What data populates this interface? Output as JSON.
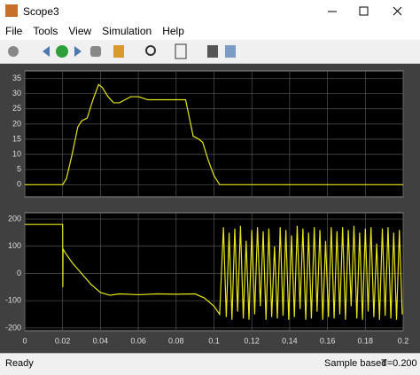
{
  "window": {
    "title": "Scope3"
  },
  "menu": [
    "File",
    "Tools",
    "View",
    "Simulation",
    "Help"
  ],
  "status": {
    "left": "Ready",
    "mode": "Sample based",
    "time": "T=0.200"
  },
  "chart_data": [
    {
      "type": "line",
      "xlim": [
        0,
        0.2
      ],
      "ylim": [
        -4,
        37.5
      ],
      "xticks": [
        0,
        0.02,
        0.04,
        0.06,
        0.08,
        0.1,
        0.12,
        0.14,
        0.16,
        0.18,
        0.2
      ],
      "yticks": [
        0,
        5,
        10,
        15,
        20,
        25,
        30,
        35
      ],
      "grid": true,
      "show_xtick_labels": false,
      "series": [
        {
          "color": "#e6e619",
          "x": [
            0,
            0.02,
            0.022,
            0.025,
            0.028,
            0.03,
            0.033,
            0.036,
            0.039,
            0.041,
            0.044,
            0.047,
            0.05,
            0.053,
            0.056,
            0.06,
            0.065,
            0.07,
            0.075,
            0.08,
            0.085,
            0.087,
            0.089,
            0.092,
            0.094,
            0.097,
            0.1,
            0.103,
            0.2
          ],
          "values": [
            0,
            0,
            2,
            10,
            19,
            21,
            22,
            28,
            33,
            32,
            29,
            27,
            27,
            28,
            29,
            29,
            28,
            28,
            28,
            28,
            28,
            22,
            16,
            15,
            14,
            8,
            3,
            0,
            0
          ]
        }
      ]
    },
    {
      "type": "line",
      "xlim": [
        0,
        0.2
      ],
      "ylim": [
        -210,
        223
      ],
      "xticks": [
        0,
        0.02,
        0.04,
        0.06,
        0.08,
        0.1,
        0.12,
        0.14,
        0.16,
        0.18,
        0.2
      ],
      "yticks": [
        -200,
        -100,
        0,
        100,
        200
      ],
      "grid": true,
      "show_xtick_labels": true,
      "series": [
        {
          "color": "#e6e619",
          "x": [
            0,
            0.02,
            0.0201,
            0.0202,
            0.021,
            0.025,
            0.03,
            0.035,
            0.04,
            0.045,
            0.05,
            0.06,
            0.07,
            0.08,
            0.09,
            0.095,
            0.1,
            0.103,
            0.105,
            0.1065,
            0.108,
            0.1095,
            0.111,
            0.1125,
            0.114,
            0.1155,
            0.117,
            0.1185,
            0.12,
            0.1215,
            0.123,
            0.1245,
            0.126,
            0.1275,
            0.129,
            0.1305,
            0.132,
            0.1335,
            0.135,
            0.1365,
            0.138,
            0.1395,
            0.141,
            0.1425,
            0.144,
            0.1455,
            0.147,
            0.1485,
            0.15,
            0.1515,
            0.153,
            0.1545,
            0.156,
            0.1575,
            0.159,
            0.1605,
            0.162,
            0.1635,
            0.165,
            0.1665,
            0.168,
            0.1695,
            0.171,
            0.1725,
            0.174,
            0.1755,
            0.177,
            0.1785,
            0.18,
            0.1815,
            0.183,
            0.1845,
            0.186,
            0.1875,
            0.189,
            0.1905,
            0.192,
            0.1935,
            0.195,
            0.1965,
            0.198,
            0.1995
          ],
          "values": [
            180,
            180,
            -50,
            90,
            80,
            40,
            0,
            -40,
            -70,
            -80,
            -75,
            -78,
            -75,
            -76,
            -75,
            -90,
            -120,
            -150,
            170,
            -160,
            150,
            -170,
            165,
            -140,
            175,
            -165,
            120,
            -170,
            160,
            -150,
            170,
            -120,
            155,
            -170,
            165,
            -160,
            100,
            -165,
            170,
            -155,
            160,
            -170,
            140,
            -160,
            175,
            -130,
            165,
            -170,
            150,
            -165,
            170,
            -140,
            160,
            -170,
            120,
            -160,
            170,
            -165,
            155,
            -150,
            170,
            -170,
            160,
            -120,
            175,
            -165,
            150,
            -170,
            165,
            -140,
            170,
            -160,
            110,
            -170,
            165,
            -155,
            170,
            -165,
            150,
            -170,
            160,
            -150
          ]
        }
      ]
    }
  ]
}
